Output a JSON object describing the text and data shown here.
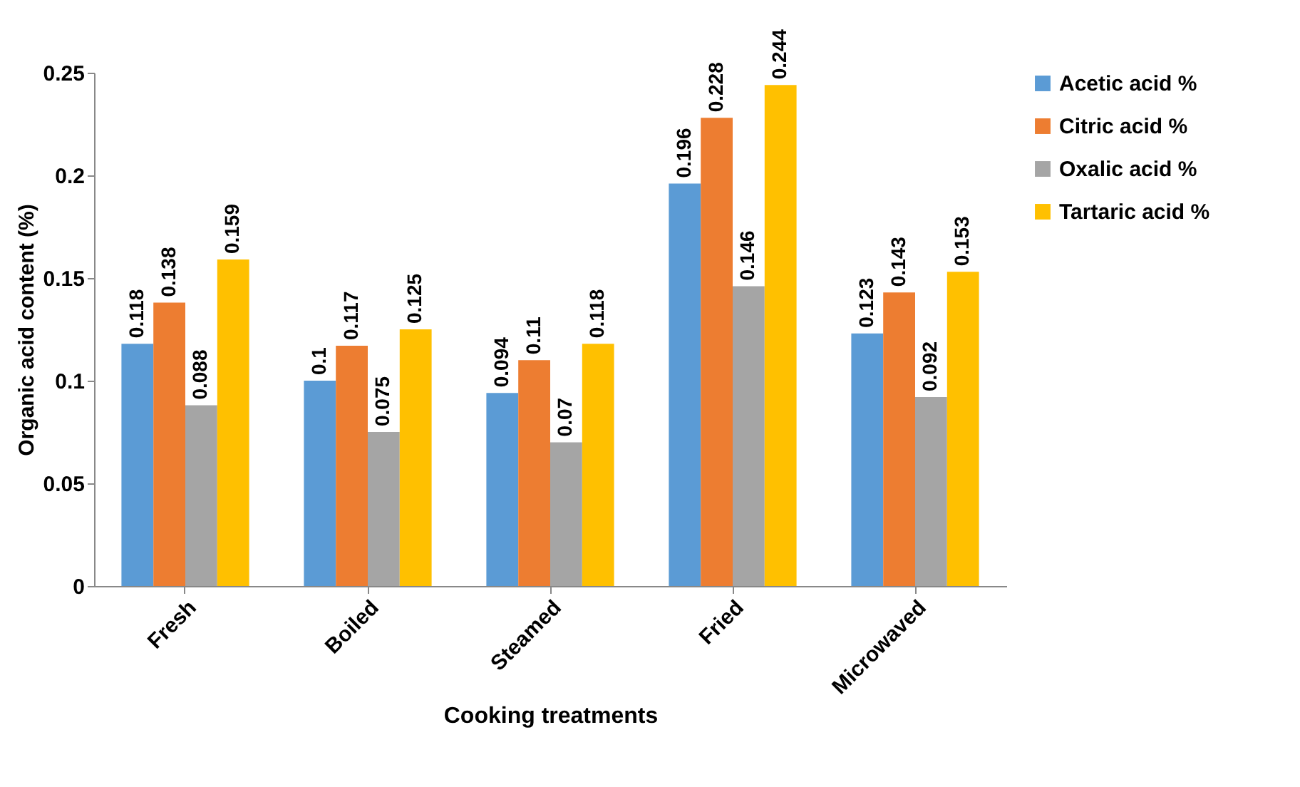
{
  "chart_data": {
    "type": "bar",
    "xlabel": "Cooking treatments",
    "ylabel": "Organic acid content (%)",
    "categories": [
      "Fresh",
      "Boiled",
      "Steamed",
      "Fried",
      "Microwaved"
    ],
    "series": [
      {
        "name": "Acetic acid %",
        "color": "#5b9bd5",
        "values": [
          0.118,
          0.1,
          0.094,
          0.196,
          0.123
        ]
      },
      {
        "name": "Citric acid %",
        "color": "#ed7d31",
        "values": [
          0.138,
          0.117,
          0.11,
          0.228,
          0.143
        ]
      },
      {
        "name": "Oxalic acid %",
        "color": "#a5a5a5",
        "values": [
          0.088,
          0.075,
          0.07,
          0.146,
          0.092
        ]
      },
      {
        "name": "Tartaric acid %",
        "color": "#ffc000",
        "values": [
          0.159,
          0.125,
          0.118,
          0.244,
          0.153
        ]
      }
    ],
    "ylim": [
      0,
      0.25
    ],
    "yticks": [
      0,
      0.05,
      0.1,
      0.15,
      0.2,
      0.25
    ],
    "data_labels": true,
    "legend": "right",
    "grid": false
  }
}
